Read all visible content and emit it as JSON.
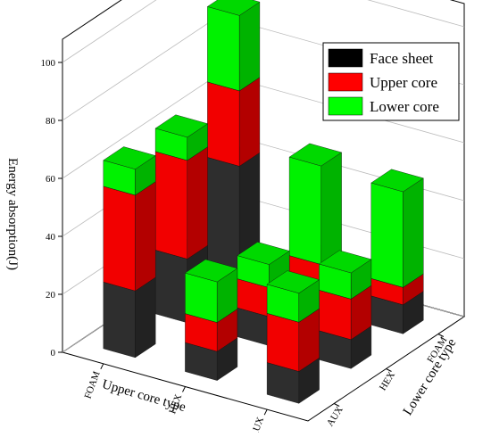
{
  "chart_data": {
    "type": "bar3d",
    "z_label": "Energy absorption(J)",
    "x_label": "Upper core type",
    "y_label": "Lower core type",
    "x_categories": [
      "FOAM",
      "HEX",
      "AUX"
    ],
    "y_categories": [
      "AUX",
      "HEX",
      "FOAM"
    ],
    "series": [
      {
        "name": "Face sheet",
        "color": "#000000",
        "values": [
          [
            23,
            10,
            11
          ],
          [
            22,
            10,
            10
          ],
          [
            42,
            10,
            10
          ]
        ]
      },
      {
        "name": "Upper core",
        "color": "#ff0000",
        "values": [
          [
            33,
            10,
            17
          ],
          [
            34,
            10,
            14
          ],
          [
            26,
            6,
            6
          ]
        ]
      },
      {
        "name": "Lower core",
        "color": "#00ff00",
        "values": [
          [
            9,
            14,
            10
          ],
          [
            8,
            8,
            9
          ],
          [
            26,
            34,
            33
          ]
        ]
      }
    ],
    "zlim": [
      0,
      100
    ],
    "zticks": [
      0,
      20,
      40,
      60,
      80,
      100
    ],
    "grid": true,
    "legend": "upper right"
  }
}
